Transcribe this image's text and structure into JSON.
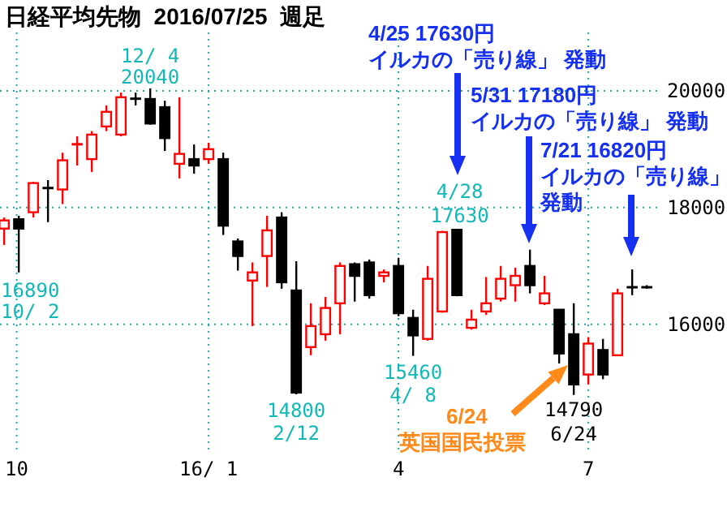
{
  "chart_data": {
    "type": "candlestick",
    "title": "日経平均先物  2016/07/25  週足",
    "x": [
      "2015-09-25",
      "2015-10-02",
      "2015-10-09",
      "2015-10-16",
      "2015-10-23",
      "2015-10-30",
      "2015-11-06",
      "2015-11-13",
      "2015-11-20",
      "2015-11-27",
      "2015-12-04",
      "2015-12-11",
      "2015-12-18",
      "2015-12-25",
      "2016-01-01",
      "2016-01-08",
      "2016-01-15",
      "2016-01-22",
      "2016-01-29",
      "2016-02-05",
      "2016-02-12",
      "2016-02-19",
      "2016-02-26",
      "2016-03-04",
      "2016-03-11",
      "2016-03-18",
      "2016-03-25",
      "2016-04-01",
      "2016-04-08",
      "2016-04-15",
      "2016-04-22",
      "2016-04-29",
      "2016-05-06",
      "2016-05-13",
      "2016-05-20",
      "2016-05-27",
      "2016-06-03",
      "2016-06-10",
      "2016-06-17",
      "2016-06-24",
      "2016-07-01",
      "2016-07-08",
      "2016-07-15",
      "2016-07-22",
      "2016-07-29"
    ],
    "ohlc": [
      [
        17640,
        17830,
        17360,
        17780
      ],
      [
        17800,
        17860,
        16890,
        17640
      ],
      [
        17920,
        18440,
        17830,
        18420
      ],
      [
        18340,
        18470,
        17750,
        18330
      ],
      [
        18310,
        18940,
        18060,
        18810
      ],
      [
        19080,
        19220,
        18720,
        19090
      ],
      [
        18830,
        19310,
        18610,
        19250
      ],
      [
        19390,
        19750,
        19310,
        19640
      ],
      [
        19250,
        19970,
        19220,
        19890
      ],
      [
        19870,
        19970,
        19750,
        19860
      ],
      [
        19860,
        20040,
        19420,
        19440
      ],
      [
        19720,
        19830,
        18970,
        19190
      ],
      [
        18750,
        19890,
        18500,
        18920
      ],
      [
        18830,
        19080,
        18580,
        18720
      ],
      [
        18830,
        19110,
        18750,
        19000
      ],
      [
        18830,
        18940,
        17530,
        17690
      ],
      [
        17420,
        17470,
        16920,
        17170
      ],
      [
        16750,
        17060,
        15970,
        16890
      ],
      [
        17170,
        17860,
        16640,
        17610
      ],
      [
        17830,
        17920,
        16610,
        16720
      ],
      [
        16580,
        17080,
        14800,
        14830
      ],
      [
        15610,
        16360,
        15470,
        15970
      ],
      [
        15830,
        16470,
        15720,
        16280
      ],
      [
        16360,
        17060,
        15830,
        17000
      ],
      [
        17030,
        17060,
        16390,
        16830
      ],
      [
        17060,
        17110,
        16440,
        16500
      ],
      [
        16830,
        16940,
        16720,
        16890
      ],
      [
        17000,
        17140,
        16140,
        16190
      ],
      [
        16110,
        16250,
        15460,
        15810
      ],
      [
        15750,
        17000,
        15720,
        16780
      ],
      [
        16220,
        17600,
        16200,
        17580
      ],
      [
        17620,
        17630,
        16480,
        16500
      ],
      [
        15940,
        16250,
        15910,
        16080
      ],
      [
        16220,
        16810,
        16160,
        16360
      ],
      [
        16440,
        17000,
        16390,
        16780
      ],
      [
        16670,
        16970,
        16390,
        16830
      ],
      [
        17000,
        17280,
        16530,
        16670
      ],
      [
        16360,
        16830,
        16330,
        16530
      ],
      [
        16250,
        16260,
        15330,
        15500
      ],
      [
        15830,
        16360,
        14790,
        14970
      ],
      [
        15140,
        15780,
        14970,
        15670
      ],
      [
        15560,
        15750,
        15060,
        15140
      ],
      [
        15470,
        16610,
        15460,
        16530
      ],
      [
        16640,
        16940,
        16500,
        16630
      ],
      [
        16640,
        16670,
        16610,
        16630
      ]
    ],
    "colors": [
      "#ff0000",
      "#000000",
      "#ff0000",
      "#000000",
      "#ff0000",
      "#ff0000",
      "#ff0000",
      "#ff0000",
      "#ff0000",
      "#000000",
      "#000000",
      "#000000",
      "#ff0000",
      "#000000",
      "#ff0000",
      "#000000",
      "#000000",
      "#ff0000",
      "#ff0000",
      "#000000",
      "#000000",
      "#ff0000",
      "#ff0000",
      "#ff0000",
      "#000000",
      "#000000",
      "#ff0000",
      "#000000",
      "#000000",
      "#ff0000",
      "#ff0000",
      "#000000",
      "#ff0000",
      "#ff0000",
      "#ff0000",
      "#ff0000",
      "#000000",
      "#ff0000",
      "#000000",
      "#000000",
      "#ff0000",
      "#000000",
      "#ff0000",
      "#000000",
      "#000000"
    ],
    "xlim": [
      "2015-09-23",
      "2016-08-03"
    ],
    "xticks": [
      {
        "value": "2015-10-01",
        "label": "10"
      },
      {
        "value": "2016-01-01",
        "label": "16/ 1"
      },
      {
        "value": "2016-04-01",
        "label": "4"
      },
      {
        "value": "2016-07-01",
        "label": "7"
      }
    ],
    "ylim": [
      13800,
      21000
    ],
    "yticks": [
      16000,
      18000,
      20000
    ],
    "grid": true,
    "annotations": [
      {
        "text": "12/ 4",
        "x": "2015-12-04",
        "y": 20040
      },
      {
        "text": "20040",
        "x": "2015-12-04",
        "y": 20040
      },
      {
        "text": "16890",
        "x": "2015-10-02",
        "y": 16890
      },
      {
        "text": "10/ 2",
        "x": "2015-10-02",
        "y": 16890
      },
      {
        "text": "14800",
        "x": "2016-02-12",
        "y": 14800
      },
      {
        "text": "2/12",
        "x": "2016-02-12",
        "y": 14800
      },
      {
        "text": "15460",
        "x": "2016-04-08",
        "y": 15460
      },
      {
        "text": "4/ 8",
        "x": "2016-04-08",
        "y": 15460
      },
      {
        "text": "4/28",
        "x": "2016-04-28",
        "y": 17630
      },
      {
        "text": "17630",
        "x": "2016-04-28",
        "y": 17630
      },
      {
        "text": "14790",
        "x": "2016-06-24",
        "y": 14790
      },
      {
        "text": "6/24",
        "x": "2016-06-24",
        "y": 14790
      },
      "4/25 17630円",
      "イルカの「売り線」 発動",
      "5/31 17180円",
      "イルカの「売り線」 発動",
      "7/21 16820円",
      "イルカの「売り線」",
      "発動",
      "6/24",
      "英国国民投票"
    ]
  }
}
